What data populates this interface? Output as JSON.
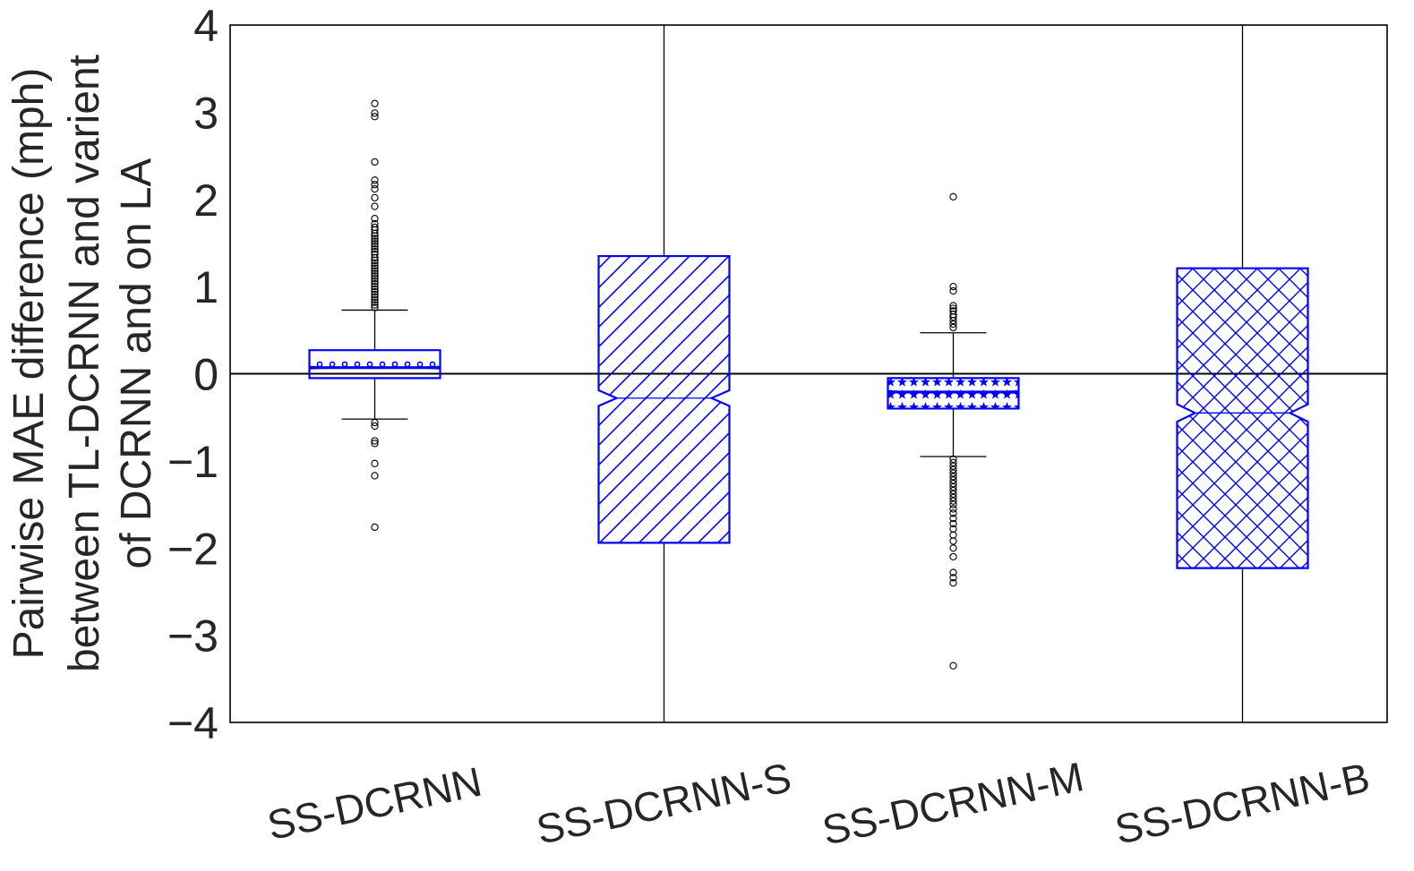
{
  "chart_data": {
    "type": "box",
    "ylabel_lines": [
      "Pairwise MAE difference (mph)",
      "between TL-DCRNN and varient",
      "of DCRNN and on LA"
    ],
    "xlabel": "",
    "ylim": [
      -4,
      4
    ],
    "yticks": [
      4,
      3,
      2,
      1,
      0,
      -1,
      -2,
      -3,
      -4
    ],
    "ytick_labels": [
      "4",
      "3",
      "2",
      "1",
      "0",
      "−1",
      "−2",
      "−3",
      "−4"
    ],
    "reference_line": 0,
    "grid": false,
    "notched": true,
    "colors": {
      "box": "#0000ff",
      "whisker": "#000000",
      "axis": "#000000"
    },
    "categories": [
      "SS-DCRNN",
      "SS-DCRNN-S",
      "SS-DCRNN-M",
      "SS-DCRNN-B"
    ],
    "boxes": [
      {
        "name": "SS-DCRNN",
        "q1": -0.05,
        "median": 0.07,
        "q3": 0.27,
        "notch_low": 0.06,
        "notch_high": 0.08,
        "whisker_low": -0.52,
        "whisker_high": 0.73,
        "hatch": "dots",
        "outliers": [
          3.1,
          2.99,
          2.95,
          2.43,
          2.22,
          2.17,
          2.12,
          2.02,
          1.92,
          1.78,
          1.72,
          1.68,
          1.65,
          1.61,
          1.58,
          1.55,
          1.52,
          1.49,
          1.46,
          1.43,
          1.4,
          1.37,
          1.33,
          1.3,
          1.27,
          1.24,
          1.21,
          1.18,
          1.15,
          1.12,
          1.09,
          1.06,
          1.03,
          1.0,
          0.97,
          0.94,
          0.91,
          0.88,
          0.85,
          0.82,
          0.79,
          0.76,
          -0.56,
          -0.6,
          -0.77,
          -0.8,
          -1.03,
          -1.17,
          -1.76
        ]
      },
      {
        "name": "SS-DCRNN-S",
        "q1": -1.94,
        "median": -0.28,
        "q3": 1.35,
        "notch_low": -0.37,
        "notch_high": -0.19,
        "whisker_low": -4.0,
        "whisker_high": 4.0,
        "hatch": "diagonal",
        "outliers": []
      },
      {
        "name": "SS-DCRNN-M",
        "q1": -0.4,
        "median": -0.21,
        "q3": -0.05,
        "notch_low": -0.22,
        "notch_high": -0.2,
        "whisker_low": -0.95,
        "whisker_high": 0.47,
        "hatch": "stars",
        "outliers": [
          2.03,
          1.0,
          0.95,
          0.78,
          0.75,
          0.72,
          0.68,
          0.65,
          0.61,
          0.57,
          0.53,
          -0.98,
          -1.02,
          -1.06,
          -1.1,
          -1.14,
          -1.18,
          -1.22,
          -1.26,
          -1.3,
          -1.34,
          -1.38,
          -1.42,
          -1.46,
          -1.5,
          -1.55,
          -1.6,
          -1.66,
          -1.72,
          -1.78,
          -1.85,
          -1.92,
          -2.0,
          -2.1,
          -2.28,
          -2.34,
          -2.4,
          -3.35
        ]
      },
      {
        "name": "SS-DCRNN-B",
        "q1": -2.23,
        "median": -0.45,
        "q3": 1.21,
        "notch_low": -0.55,
        "notch_high": -0.35,
        "whisker_low": -4.0,
        "whisker_high": 4.0,
        "hatch": "crosshatch",
        "outliers": []
      }
    ]
  }
}
